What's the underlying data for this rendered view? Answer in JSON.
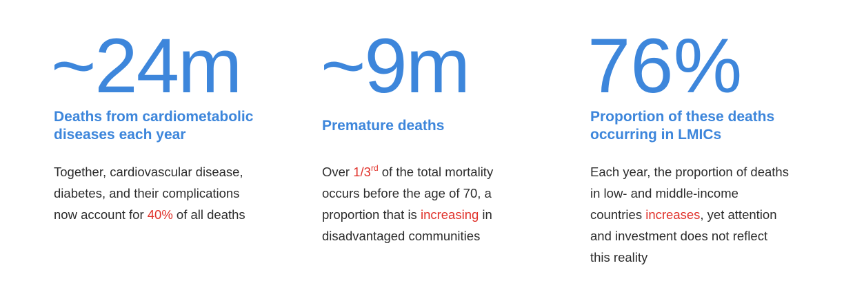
{
  "colors": {
    "accent": "#3d86db",
    "highlight": "#e0312a",
    "body_text": "#2c2c2c"
  },
  "stats": [
    {
      "figure": "~24m",
      "headline_lines": [
        "Deaths from cardiometabolic",
        "diseases each year"
      ],
      "body": {
        "line1": "Together, cardiovascular disease,",
        "line2": "diabetes, and their complications",
        "line3_pre": "now account for ",
        "line3_hl": "40%",
        "line3_post": " of all deaths"
      }
    },
    {
      "figure": "~9m",
      "headline_lines": [
        "Premature deaths"
      ],
      "body": {
        "line1_pre": "Over ",
        "line1_hl": "1/3",
        "line1_sup": "rd",
        "line1_post": " of the total mortality",
        "line2": "occurs before the age of 70, a",
        "line3_pre": "proportion that is ",
        "line3_hl": "increasing",
        "line3_post": " in",
        "line4": "disadvantaged communities"
      }
    },
    {
      "figure": "76%",
      "headline_lines": [
        "Proportion of these deaths",
        "occurring in LMICs"
      ],
      "body": {
        "line1": "Each year, the proportion of deaths",
        "line2": "in low- and middle-income",
        "line3_pre": "countries ",
        "line3_hl": "increases",
        "line3_post": ", yet attention",
        "line4": "and investment does not reflect",
        "line5": "this reality"
      }
    }
  ]
}
